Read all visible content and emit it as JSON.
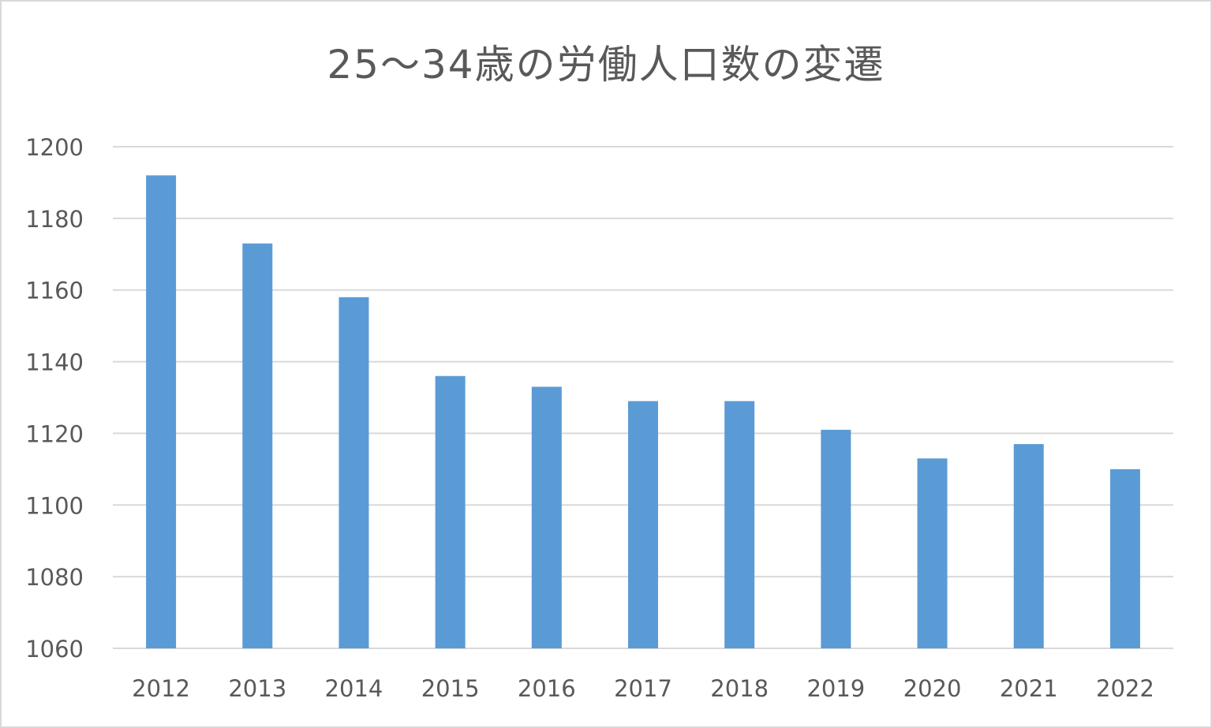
{
  "chart_data": {
    "type": "bar",
    "title": "25～34歳の労働人口数の変遷",
    "xlabel": "",
    "ylabel": "",
    "categories": [
      "2012",
      "2013",
      "2014",
      "2015",
      "2016",
      "2017",
      "2018",
      "2019",
      "2020",
      "2021",
      "2022"
    ],
    "values": [
      1192,
      1173,
      1158,
      1136,
      1133,
      1129,
      1129,
      1121,
      1113,
      1117,
      1110
    ],
    "ylim": [
      1060,
      1200
    ],
    "yticks": [
      1200,
      1180,
      1160,
      1140,
      1120,
      1100,
      1080,
      1060
    ],
    "grid": true,
    "legend": null,
    "colors": {
      "bar": "#5b9bd5",
      "grid": "#d9d9d9",
      "text": "#595959",
      "border": "#d9d9d9"
    }
  }
}
